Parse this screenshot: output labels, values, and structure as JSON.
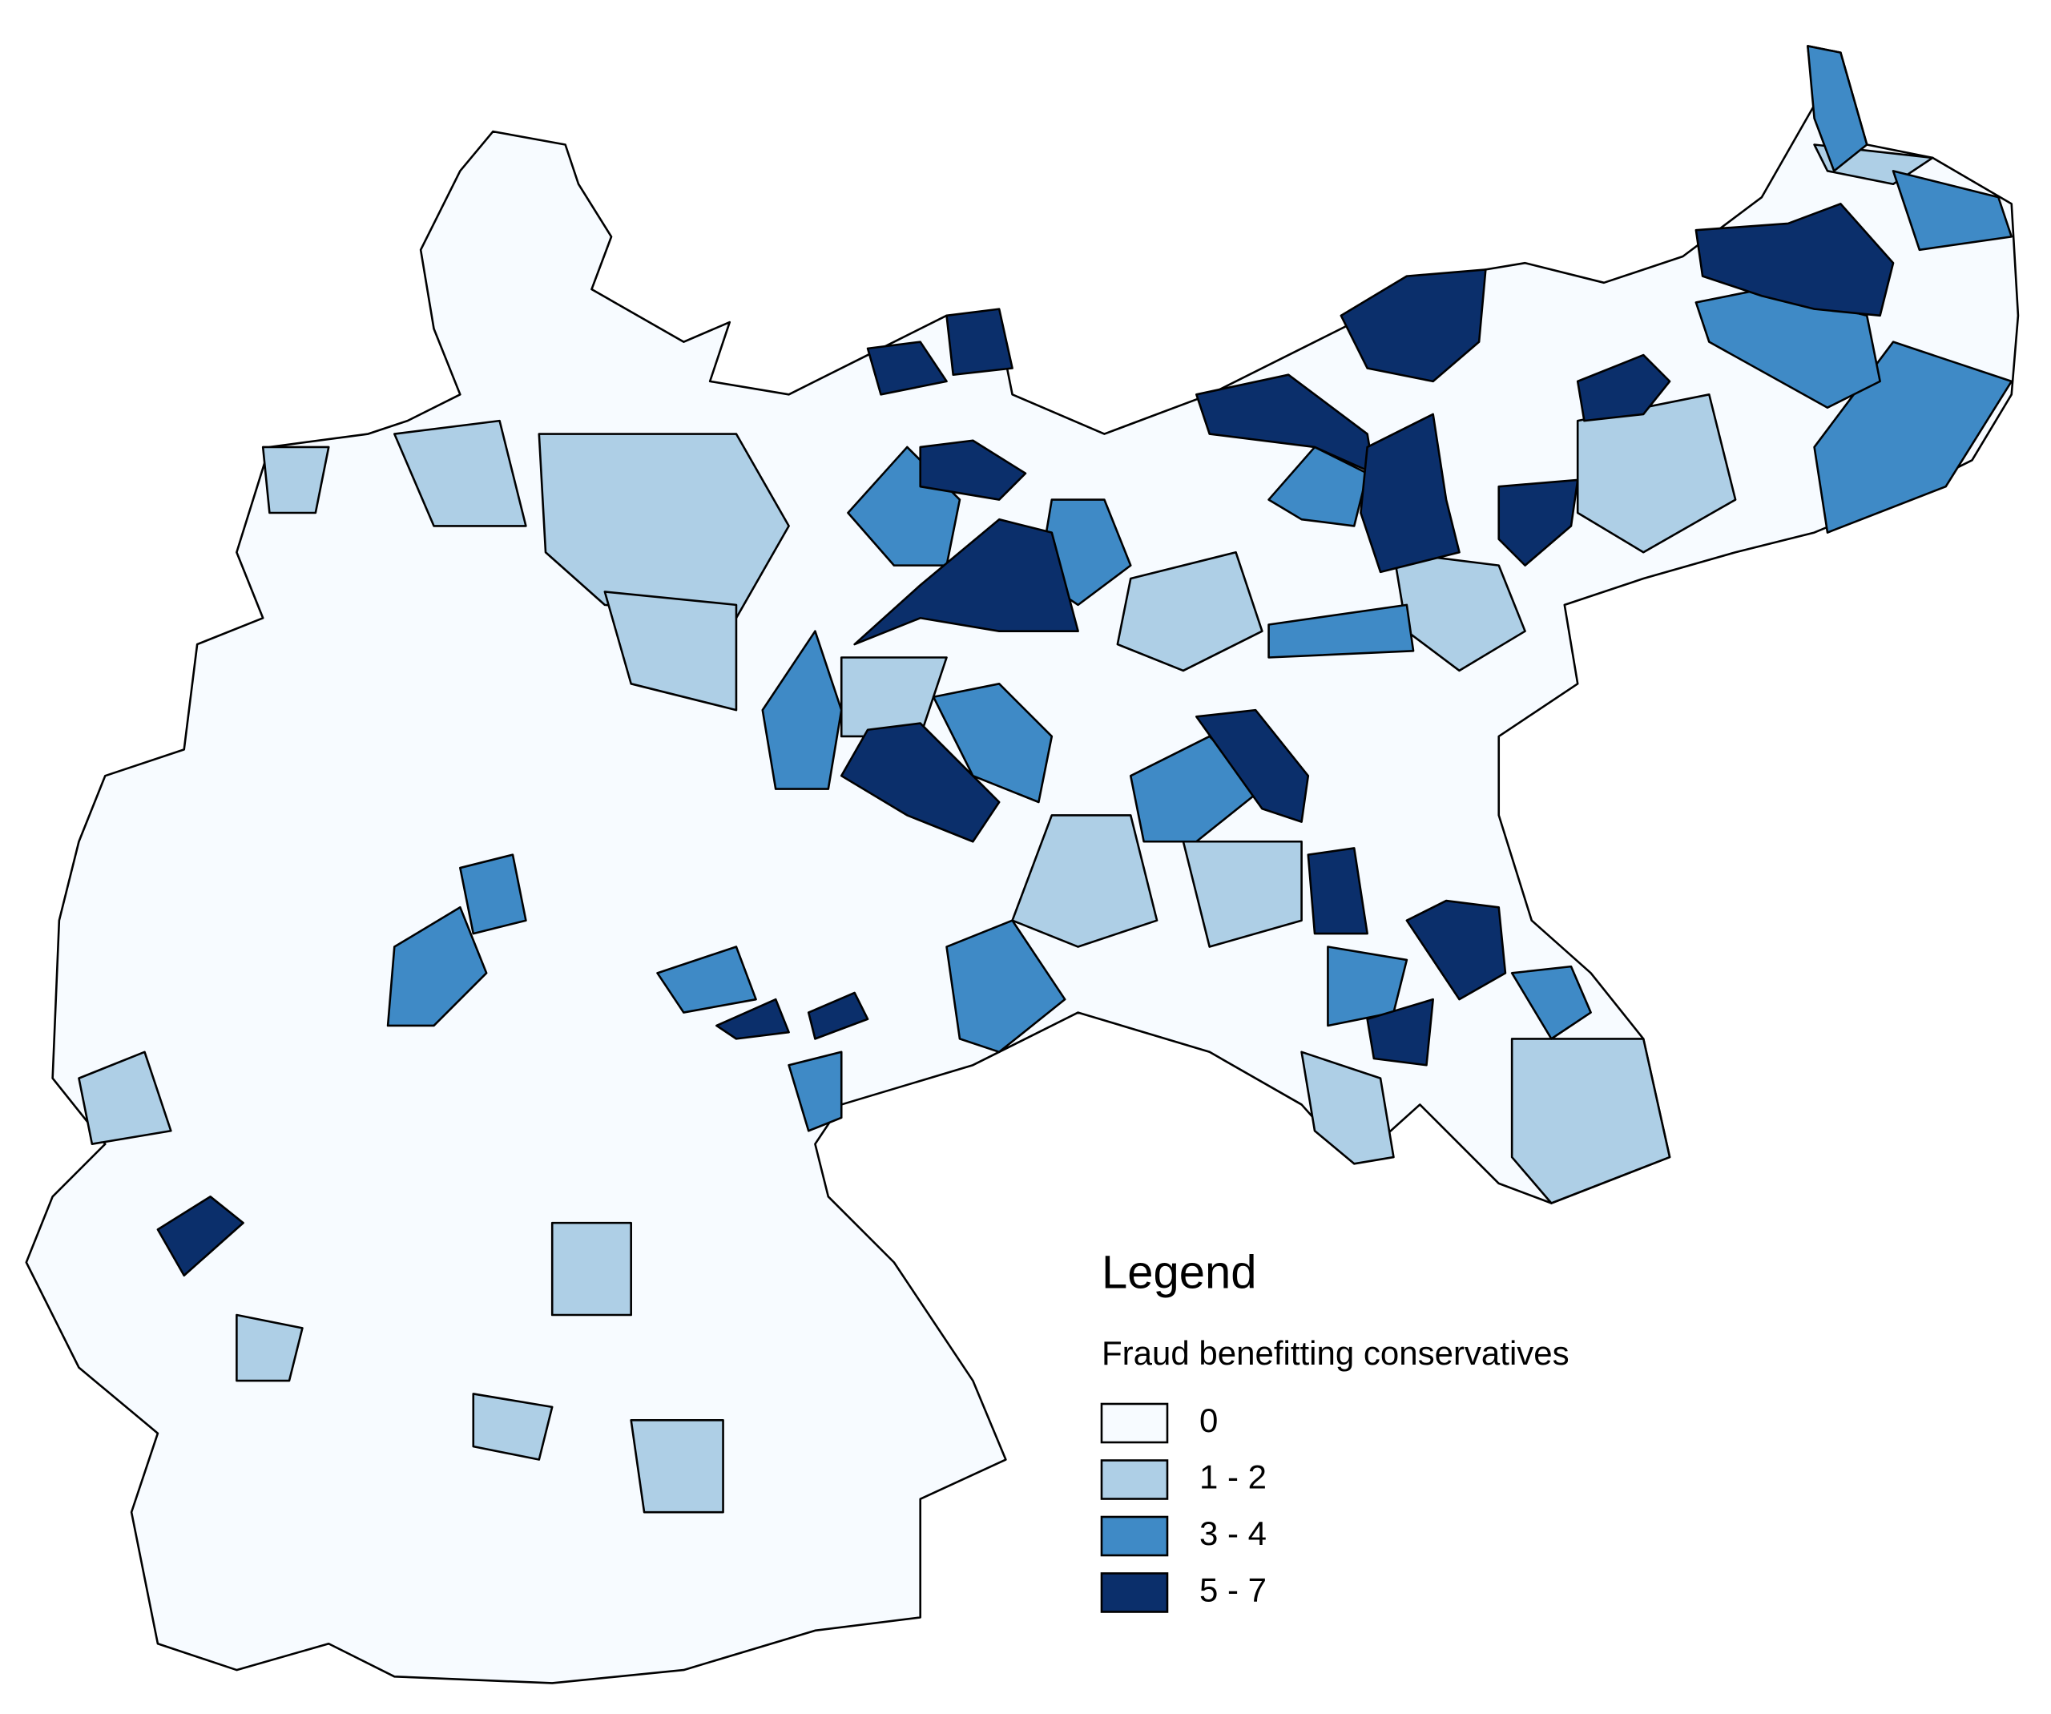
{
  "legend": {
    "title": "Legend",
    "subtitle": "Fraud benefitting conservatives",
    "items": [
      {
        "label": "0",
        "color": "#f7fbff"
      },
      {
        "label": "1 - 2",
        "color": "#aecfe6"
      },
      {
        "label": "3 - 4",
        "color": "#3f8ac6"
      },
      {
        "label": "5 - 7",
        "color": "#0b2f6b"
      }
    ]
  }
}
